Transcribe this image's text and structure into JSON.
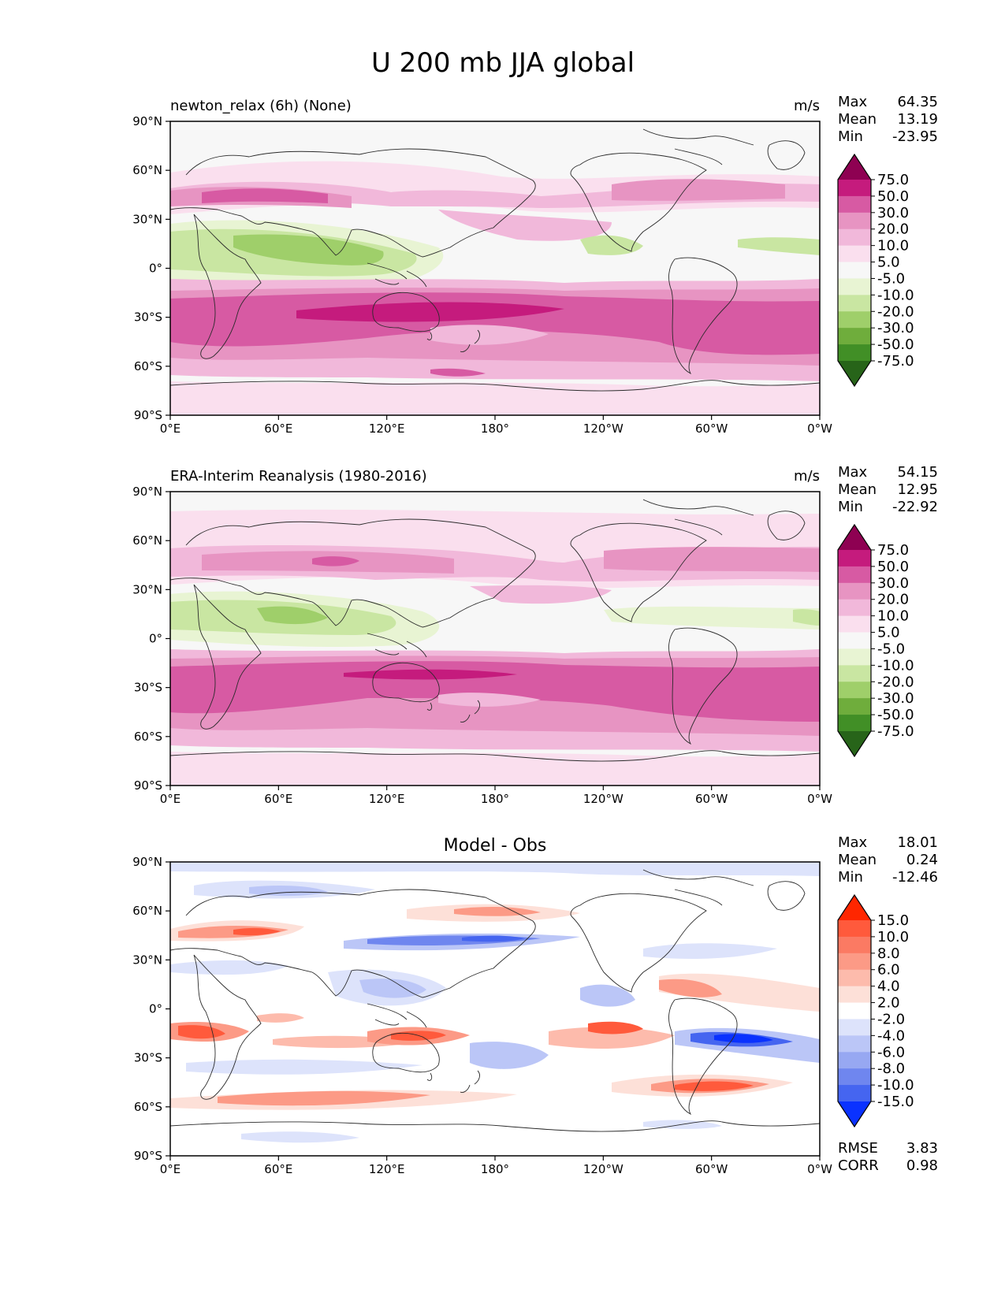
{
  "title": "U 200 mb JJA global",
  "colors": {
    "land_outline": "#2b2b2b",
    "frame": "#000000",
    "field_bg": "#f7f7f7"
  },
  "chart_data": [
    {
      "type": "heatmap",
      "panel": "model",
      "title_left": "newton_relax (6h) (None)",
      "units": "m/s",
      "stats": [
        {
          "label": "Max",
          "value": "64.35"
        },
        {
          "label": "Mean",
          "value": "13.19"
        },
        {
          "label": "Min",
          "value": "-23.95"
        }
      ],
      "xticks": [
        "0°E",
        "60°E",
        "120°E",
        "180°",
        "120°W",
        "60°W",
        "0°W"
      ],
      "yticks": [
        "90°N",
        "60°N",
        "30°N",
        "0°",
        "30°S",
        "60°S",
        "90°S"
      ],
      "xlim": [
        0,
        360
      ],
      "ylim": [
        -90,
        90
      ],
      "colorbar": {
        "labels": [
          "75.0",
          "50.0",
          "30.0",
          "20.0",
          "10.0",
          "5.0",
          "-5.0",
          "-10.0",
          "-20.0",
          "-30.0",
          "-50.0",
          "-75.0"
        ],
        "colors": [
          "#8e0152",
          "#c51b7d",
          "#d75aa3",
          "#e794c2",
          "#f1b8da",
          "#fadfee",
          "#f7f7f7",
          "#e8f4d3",
          "#c9e6a2",
          "#9fcf6a",
          "#6fad3c",
          "#418f26",
          "#276419"
        ]
      },
      "rmse": null,
      "corr": null
    },
    {
      "type": "heatmap",
      "panel": "obs",
      "title_left": "ERA-Interim Reanalysis (1980-2016)",
      "units": "m/s",
      "stats": [
        {
          "label": "Max",
          "value": "54.15"
        },
        {
          "label": "Mean",
          "value": "12.95"
        },
        {
          "label": "Min",
          "value": "-22.92"
        }
      ],
      "xticks": [
        "0°E",
        "60°E",
        "120°E",
        "180°",
        "120°W",
        "60°W",
        "0°W"
      ],
      "yticks": [
        "90°N",
        "60°N",
        "30°N",
        "0°",
        "30°S",
        "60°S",
        "90°S"
      ],
      "xlim": [
        0,
        360
      ],
      "ylim": [
        -90,
        90
      ],
      "colorbar": {
        "labels": [
          "75.0",
          "50.0",
          "30.0",
          "20.0",
          "10.0",
          "5.0",
          "-5.0",
          "-10.0",
          "-20.0",
          "-30.0",
          "-50.0",
          "-75.0"
        ],
        "colors": [
          "#8e0152",
          "#c51b7d",
          "#d75aa3",
          "#e794c2",
          "#f1b8da",
          "#fadfee",
          "#f7f7f7",
          "#e8f4d3",
          "#c9e6a2",
          "#9fcf6a",
          "#6fad3c",
          "#418f26",
          "#276419"
        ]
      },
      "rmse": null,
      "corr": null
    },
    {
      "type": "heatmap",
      "panel": "diff",
      "title_center": "Model - Obs",
      "stats": [
        {
          "label": "Max",
          "value": "18.01"
        },
        {
          "label": "Mean",
          "value": "0.24"
        },
        {
          "label": "Min",
          "value": "-12.46"
        }
      ],
      "xticks": [
        "0°E",
        "60°E",
        "120°E",
        "180°",
        "120°W",
        "60°W",
        "0°W"
      ],
      "yticks": [
        "90°N",
        "60°N",
        "30°N",
        "0°",
        "30°S",
        "60°S",
        "90°S"
      ],
      "xlim": [
        0,
        360
      ],
      "ylim": [
        -90,
        90
      ],
      "colorbar": {
        "labels": [
          "15.0",
          "10.0",
          "8.0",
          "6.0",
          "4.0",
          "2.0",
          "-2.0",
          "-4.0",
          "-6.0",
          "-8.0",
          "-10.0",
          "-15.0"
        ],
        "colors": [
          "#ff2600",
          "#ff5a3c",
          "#fb7a63",
          "#fc9a86",
          "#fdbbac",
          "#fde0d8",
          "#ffffff",
          "#dde3fb",
          "#bbc6f7",
          "#97a8f2",
          "#6f86ef",
          "#4565f0",
          "#0a32ff"
        ]
      },
      "rmse": {
        "label": "RMSE",
        "value": "3.83"
      },
      "corr": {
        "label": "CORR",
        "value": "0.98"
      }
    }
  ]
}
